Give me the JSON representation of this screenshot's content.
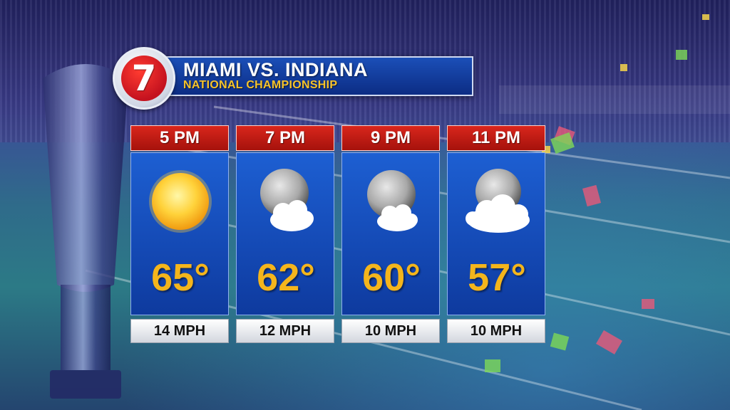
{
  "header": {
    "logo_text": "7",
    "title": "MIAMI VS. INDIANA",
    "subtitle": "NATIONAL CHAMPIONSHIP"
  },
  "forecast": [
    {
      "time": "5 PM",
      "condition": "sunny",
      "icon": "sun-icon",
      "temperature": "65°",
      "wind": "14 MPH"
    },
    {
      "time": "7 PM",
      "condition": "partly-cloudy-night",
      "icon": "moon-cloud-icon",
      "temperature": "62°",
      "wind": "12 MPH"
    },
    {
      "time": "9 PM",
      "condition": "partly-cloudy-night",
      "icon": "moon-cloud-icon",
      "temperature": "60°",
      "wind": "10 MPH"
    },
    {
      "time": "11 PM",
      "condition": "mostly-cloudy-night",
      "icon": "moon-cloud-icon",
      "temperature": "57°",
      "wind": "10 MPH"
    }
  ],
  "colors": {
    "header_red": "#c4121f",
    "title_blue": "#0c2c84",
    "subtitle_gold": "#f7c32a",
    "temp_gold": "#f4b51c",
    "panel_blue": "#1449b4"
  }
}
